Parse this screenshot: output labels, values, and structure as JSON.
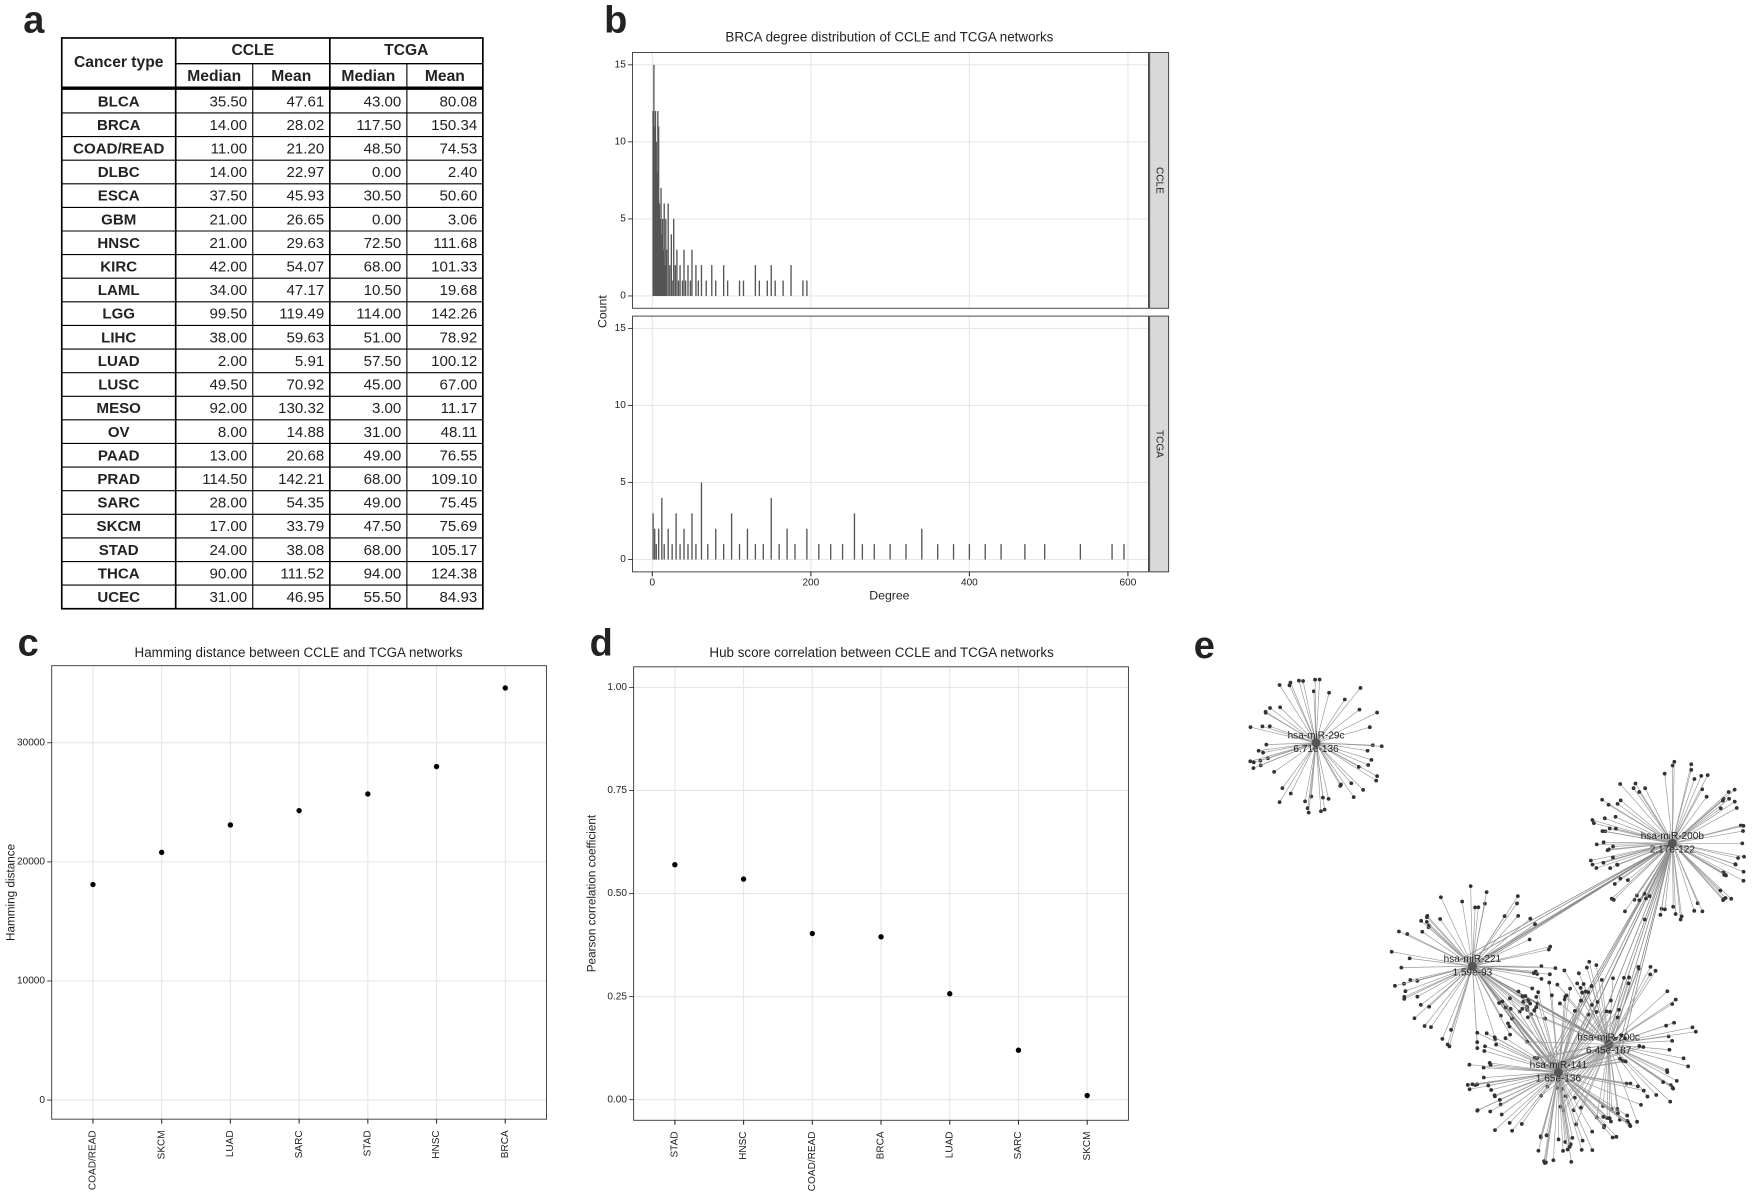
{
  "panel_labels": [
    "a",
    "b",
    "c",
    "d",
    "e"
  ],
  "table": {
    "header": {
      "cancer_type": "Cancer type",
      "groups": [
        "CCLE",
        "TCGA"
      ],
      "columns": [
        "Median",
        "Mean",
        "Median",
        "Mean"
      ]
    },
    "rows": [
      [
        "BLCA",
        "35.50",
        "47.61",
        "43.00",
        "80.08"
      ],
      [
        "BRCA",
        "14.00",
        "28.02",
        "117.50",
        "150.34"
      ],
      [
        "COAD/READ",
        "11.00",
        "21.20",
        "48.50",
        "74.53"
      ],
      [
        "DLBC",
        "14.00",
        "22.97",
        "0.00",
        "2.40"
      ],
      [
        "ESCA",
        "37.50",
        "45.93",
        "30.50",
        "50.60"
      ],
      [
        "GBM",
        "21.00",
        "26.65",
        "0.00",
        "3.06"
      ],
      [
        "HNSC",
        "21.00",
        "29.63",
        "72.50",
        "111.68"
      ],
      [
        "KIRC",
        "42.00",
        "54.07",
        "68.00",
        "101.33"
      ],
      [
        "LAML",
        "34.00",
        "47.17",
        "10.50",
        "19.68"
      ],
      [
        "LGG",
        "99.50",
        "119.49",
        "114.00",
        "142.26"
      ],
      [
        "LIHC",
        "38.00",
        "59.63",
        "51.00",
        "78.92"
      ],
      [
        "LUAD",
        "2.00",
        "5.91",
        "57.50",
        "100.12"
      ],
      [
        "LUSC",
        "49.50",
        "70.92",
        "45.00",
        "67.00"
      ],
      [
        "MESO",
        "92.00",
        "130.32",
        "3.00",
        "11.17"
      ],
      [
        "OV",
        "8.00",
        "14.88",
        "31.00",
        "48.11"
      ],
      [
        "PAAD",
        "13.00",
        "20.68",
        "49.00",
        "76.55"
      ],
      [
        "PRAD",
        "114.50",
        "142.21",
        "68.00",
        "109.10"
      ],
      [
        "SARC",
        "28.00",
        "54.35",
        "49.00",
        "75.45"
      ],
      [
        "SKCM",
        "17.00",
        "33.79",
        "47.50",
        "75.69"
      ],
      [
        "STAD",
        "24.00",
        "38.08",
        "68.00",
        "105.17"
      ],
      [
        "THCA",
        "90.00",
        "111.52",
        "94.00",
        "124.38"
      ],
      [
        "UCEC",
        "31.00",
        "46.95",
        "55.50",
        "84.93"
      ]
    ]
  },
  "chart_data": [
    {
      "type": "histogram",
      "title": "BRCA degree distribution of CCLE and TCGA networks",
      "xlabel": "Degree",
      "ylabel": "Count",
      "color": "#555555",
      "grid": true,
      "xlim": [
        -25,
        626
      ],
      "xticks": [
        0,
        200,
        400,
        600
      ],
      "ylim": [
        -0.8,
        15.8
      ],
      "yticks": [
        0,
        5,
        10,
        15
      ],
      "series": [
        {
          "name": "CCLE",
          "x": [
            1,
            2,
            3,
            4,
            5,
            6,
            7,
            8,
            9,
            10,
            11,
            12,
            13,
            14,
            15,
            16,
            17,
            18,
            20,
            22,
            24,
            25,
            27,
            29,
            31,
            33,
            35,
            38,
            40,
            42,
            45,
            48,
            50,
            55,
            58,
            62,
            68,
            75,
            80,
            90,
            95,
            110,
            115,
            130,
            135,
            145,
            150,
            155,
            165,
            175,
            190,
            195
          ],
          "values": [
            12,
            15,
            11,
            12,
            10,
            8,
            12,
            11,
            6,
            5,
            7,
            4,
            5,
            3,
            6,
            2,
            5,
            3,
            6,
            2,
            4,
            1,
            5,
            2,
            3,
            1,
            2,
            1,
            3,
            1,
            2,
            1,
            3,
            2,
            1,
            2,
            1,
            2,
            1,
            2,
            1,
            1,
            1,
            2,
            1,
            1,
            2,
            1,
            1,
            2,
            1,
            1
          ]
        },
        {
          "name": "TCGA",
          "x": [
            1,
            3,
            5,
            8,
            12,
            15,
            20,
            25,
            30,
            35,
            40,
            45,
            50,
            55,
            62,
            70,
            80,
            90,
            100,
            110,
            120,
            130,
            140,
            150,
            160,
            170,
            180,
            195,
            210,
            225,
            240,
            255,
            265,
            280,
            300,
            320,
            340,
            360,
            380,
            400,
            420,
            440,
            470,
            495,
            540,
            580,
            595
          ],
          "values": [
            3,
            2,
            1,
            2,
            4,
            1,
            2,
            1,
            3,
            1,
            2,
            1,
            3,
            1,
            5,
            1,
            2,
            1,
            3,
            1,
            2,
            1,
            1,
            4,
            1,
            2,
            1,
            2,
            1,
            1,
            1,
            3,
            1,
            1,
            1,
            1,
            2,
            1,
            1,
            1,
            1,
            1,
            1,
            1,
            1,
            1,
            1
          ]
        }
      ]
    },
    {
      "type": "scatter",
      "title": "Hamming distance between CCLE and TCGA networks",
      "ylabel": "Hamming distance",
      "grid": true,
      "categories": [
        "COAD/READ",
        "SKCM",
        "LUAD",
        "SARC",
        "STAD",
        "HNSC",
        "BRCA"
      ],
      "values": [
        18100,
        20800,
        23100,
        24300,
        25700,
        28000,
        34600
      ],
      "ylim": [
        -1600,
        36470
      ],
      "yticks": [
        0,
        10000,
        20000,
        30000
      ],
      "color": "#000000"
    },
    {
      "type": "scatter",
      "title": "Hub score correlation between CCLE and TCGA networks",
      "ylabel": "Pearson correlation coefficient",
      "grid": true,
      "categories": [
        "STAD",
        "HNSC",
        "COAD/READ",
        "BRCA",
        "LUAD",
        "SARC",
        "SKCM"
      ],
      "values": [
        0.57,
        0.535,
        0.403,
        0.395,
        0.257,
        0.12,
        0.01
      ],
      "ylim": [
        -0.05,
        1.05
      ],
      "yticks": [
        {
          "value": 0,
          "label": "0.00"
        },
        {
          "value": 0.25,
          "label": "0.25"
        },
        {
          "value": 0.5,
          "label": "0.50"
        },
        {
          "value": 0.75,
          "label": "0.75"
        },
        {
          "value": 1,
          "label": "1.00"
        }
      ],
      "color": "#000000"
    }
  ],
  "network": {
    "nodes": [
      {
        "label": "hsa-miR-29c",
        "score": "6.71e-136"
      },
      {
        "label": "hsa-miR-200b",
        "score": "2.17e-122"
      },
      {
        "label": "hsa-miR-221",
        "score": "1.59e-93"
      },
      {
        "label": "hsa-miR-200c",
        "score": "6.45e-187"
      },
      {
        "label": "hsa-miR-141",
        "score": "1.65e-136"
      }
    ]
  }
}
